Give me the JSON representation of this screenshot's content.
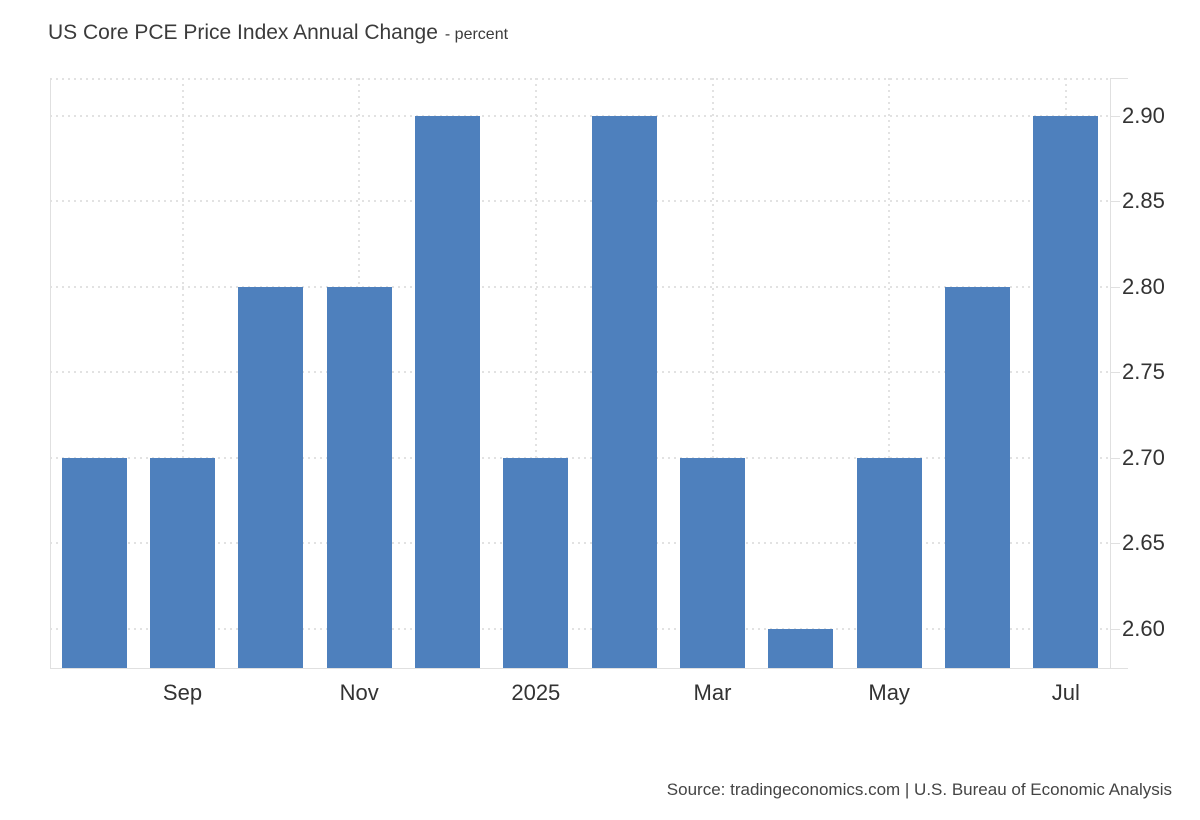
{
  "header": {
    "title": "US Core PCE Price Index Annual Change",
    "subtitle": "- percent"
  },
  "footer": {
    "source_text": "Source: tradingeconomics.com | U.S. Bureau of Economic Analysis"
  },
  "colors": {
    "bar": "#4e80bd",
    "grid": "#e2e2e2",
    "axis": "#e0e0e0",
    "tick_label": "#333333",
    "title": "#3b3b3b",
    "source": "#444444"
  },
  "chart_data": {
    "type": "bar",
    "title": "US Core PCE Price Index Annual Change",
    "subtitle": "- percent",
    "ylabel": "percent",
    "values": [
      2.7,
      2.7,
      2.8,
      2.8,
      2.9,
      2.7,
      2.9,
      2.7,
      2.6,
      2.7,
      2.8,
      2.9
    ],
    "x_tick_labels": [
      {
        "index": 1,
        "label": "Sep"
      },
      {
        "index": 3,
        "label": "Nov"
      },
      {
        "index": 5,
        "label": "2025"
      },
      {
        "index": 7,
        "label": "Mar"
      },
      {
        "index": 9,
        "label": "May"
      },
      {
        "index": 11,
        "label": "Jul"
      }
    ],
    "y_ticks": [
      "2.60",
      "2.65",
      "2.70",
      "2.75",
      "2.80",
      "2.85",
      "2.90"
    ],
    "ylim": [
      2.577,
      2.922
    ],
    "grid": "dotted",
    "legend": "none",
    "y_axis_side": "right"
  }
}
